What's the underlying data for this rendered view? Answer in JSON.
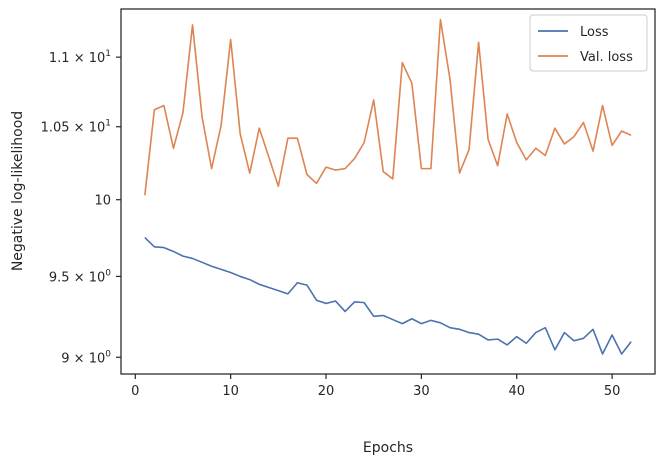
{
  "chart_data": {
    "type": "line",
    "xlabel": "Epochs",
    "ylabel": "Negative log-likelihood",
    "yscale": "log",
    "xlim": [
      -1.5,
      54.5
    ],
    "ylim": [
      8.9,
      11.36
    ],
    "grid": false,
    "legend_position": "top-right",
    "x_ticks": [
      {
        "value": 0,
        "label": "0"
      },
      {
        "value": 10,
        "label": "10"
      },
      {
        "value": 20,
        "label": "20"
      },
      {
        "value": 30,
        "label": "30"
      },
      {
        "value": 40,
        "label": "40"
      },
      {
        "value": 50,
        "label": "50"
      }
    ],
    "y_ticks": [
      {
        "value": 9.0,
        "mant": "9",
        "exp": "0",
        "label": ""
      },
      {
        "value": 9.5,
        "mant": "9.5",
        "exp": "0",
        "label": ""
      },
      {
        "value": 10.0,
        "mant": "",
        "exp": "",
        "label": "10"
      },
      {
        "value": 10.5,
        "mant": "1.05",
        "exp": "1",
        "label": ""
      },
      {
        "value": 11.0,
        "mant": "1.1",
        "exp": "1",
        "label": ""
      }
    ],
    "x": [
      1,
      2,
      3,
      4,
      5,
      6,
      7,
      8,
      9,
      10,
      11,
      12,
      13,
      14,
      15,
      16,
      17,
      18,
      19,
      20,
      21,
      22,
      23,
      24,
      25,
      26,
      27,
      28,
      29,
      30,
      31,
      32,
      33,
      34,
      35,
      36,
      37,
      38,
      39,
      40,
      41,
      42,
      43,
      44,
      45,
      46,
      47,
      48,
      49,
      50,
      51,
      52
    ],
    "series": [
      {
        "name": "Loss",
        "color": "#4c72b0",
        "values": [
          9.75,
          9.69,
          9.685,
          9.66,
          9.63,
          9.615,
          9.59,
          9.565,
          9.545,
          9.525,
          9.5,
          9.48,
          9.45,
          9.43,
          9.41,
          9.39,
          9.46,
          9.445,
          9.35,
          9.33,
          9.345,
          9.28,
          9.34,
          9.335,
          9.25,
          9.255,
          9.23,
          9.205,
          9.235,
          9.205,
          9.225,
          9.21,
          9.18,
          9.17,
          9.15,
          9.14,
          9.105,
          9.11,
          9.075,
          9.125,
          9.085,
          9.15,
          9.18,
          9.045,
          9.15,
          9.1,
          9.115,
          9.17,
          9.02,
          9.135,
          9.02,
          9.095
        ]
      },
      {
        "name": "Val. loss",
        "color": "#dd8452",
        "values": [
          10.03,
          10.62,
          10.65,
          10.35,
          10.6,
          11.24,
          10.57,
          10.21,
          10.51,
          11.13,
          10.45,
          10.18,
          10.49,
          10.29,
          10.09,
          10.42,
          10.42,
          10.17,
          10.11,
          10.22,
          10.2,
          10.21,
          10.28,
          10.39,
          10.69,
          10.19,
          10.14,
          10.96,
          10.81,
          10.21,
          10.21,
          11.28,
          10.84,
          10.18,
          10.34,
          11.11,
          10.41,
          10.23,
          10.59,
          10.39,
          10.27,
          10.35,
          10.3,
          10.49,
          10.38,
          10.43,
          10.53,
          10.33,
          10.65,
          10.37,
          10.47,
          10.44
        ]
      }
    ]
  }
}
